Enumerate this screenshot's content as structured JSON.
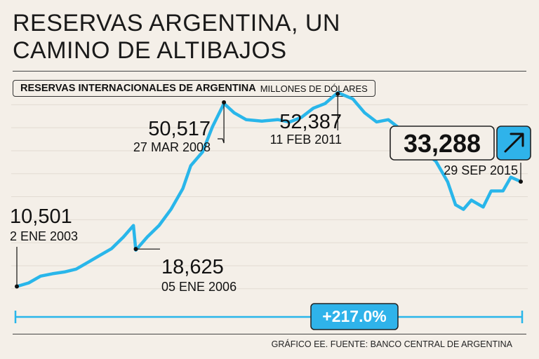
{
  "title": "RESERVAS ARGENTINA, UN CAMINO DE ALTIBAJOS",
  "subtitle_bold": "RESERVAS INTERNACIONALES DE ARGENTINA",
  "subtitle_light": "MILLONES DE DÓLARES",
  "footer": "GRÁFICO EE. FUENTE: BANCO CENTRAL DE ARGENTINA",
  "colors": {
    "line": "#29b6ea",
    "background": "#f4efe8",
    "highlight": "#2fb3ea",
    "grid": "#e2dbd2"
  },
  "chart_data": {
    "type": "line",
    "unit": "Millones de dólares",
    "ylim": [
      6000,
      56000
    ],
    "x_start": 2003.0,
    "x_end": 2015.75,
    "grid": true,
    "series": [
      {
        "name": "Reservas internacionales",
        "points": [
          [
            2003.0,
            10501
          ],
          [
            2003.3,
            11500
          ],
          [
            2003.6,
            12500
          ],
          [
            2003.9,
            13500
          ],
          [
            2004.2,
            13400
          ],
          [
            2004.5,
            14500
          ],
          [
            2004.8,
            15500
          ],
          [
            2005.1,
            17500
          ],
          [
            2005.4,
            18500
          ],
          [
            2005.7,
            21500
          ],
          [
            2005.95,
            23500
          ],
          [
            2006.01,
            18625
          ],
          [
            2006.3,
            21000
          ],
          [
            2006.6,
            24000
          ],
          [
            2006.9,
            27000
          ],
          [
            2007.2,
            32000
          ],
          [
            2007.4,
            36500
          ],
          [
            2007.7,
            40000
          ],
          [
            2007.95,
            45000
          ],
          [
            2008.24,
            50517
          ],
          [
            2008.5,
            48000
          ],
          [
            2008.8,
            47000
          ],
          [
            2009.2,
            46200
          ],
          [
            2009.6,
            47000
          ],
          [
            2009.9,
            46000
          ],
          [
            2010.2,
            47500
          ],
          [
            2010.5,
            49000
          ],
          [
            2010.8,
            50500
          ],
          [
            2011.12,
            52387
          ],
          [
            2011.5,
            51500
          ],
          [
            2011.8,
            48000
          ],
          [
            2012.1,
            46500
          ],
          [
            2012.4,
            46500
          ],
          [
            2012.7,
            45000
          ],
          [
            2013.0,
            43000
          ],
          [
            2013.3,
            40000
          ],
          [
            2013.6,
            37500
          ],
          [
            2013.9,
            33500
          ],
          [
            2014.1,
            28000
          ],
          [
            2014.3,
            27500
          ],
          [
            2014.5,
            29000
          ],
          [
            2014.8,
            28000
          ],
          [
            2015.0,
            31000
          ],
          [
            2015.3,
            31500
          ],
          [
            2015.5,
            34000
          ],
          [
            2015.75,
            33288
          ]
        ]
      }
    ],
    "annotations": [
      {
        "value": "10,501",
        "date": "2 ENE 2003",
        "x": 2003.0,
        "y": 10501
      },
      {
        "value": "18,625",
        "date": "05 ENE 2006",
        "x": 2006.01,
        "y": 18625
      },
      {
        "value": "50,517",
        "date": "27 MAR 2008",
        "x": 2008.24,
        "y": 50517
      },
      {
        "value": "52,387",
        "date": "11 FEB 2011",
        "x": 2011.12,
        "y": 52387
      },
      {
        "value": "33,288",
        "date": "29 SEP 2015",
        "x": 2015.75,
        "y": 33288
      }
    ],
    "change_label": "+217.0%"
  }
}
